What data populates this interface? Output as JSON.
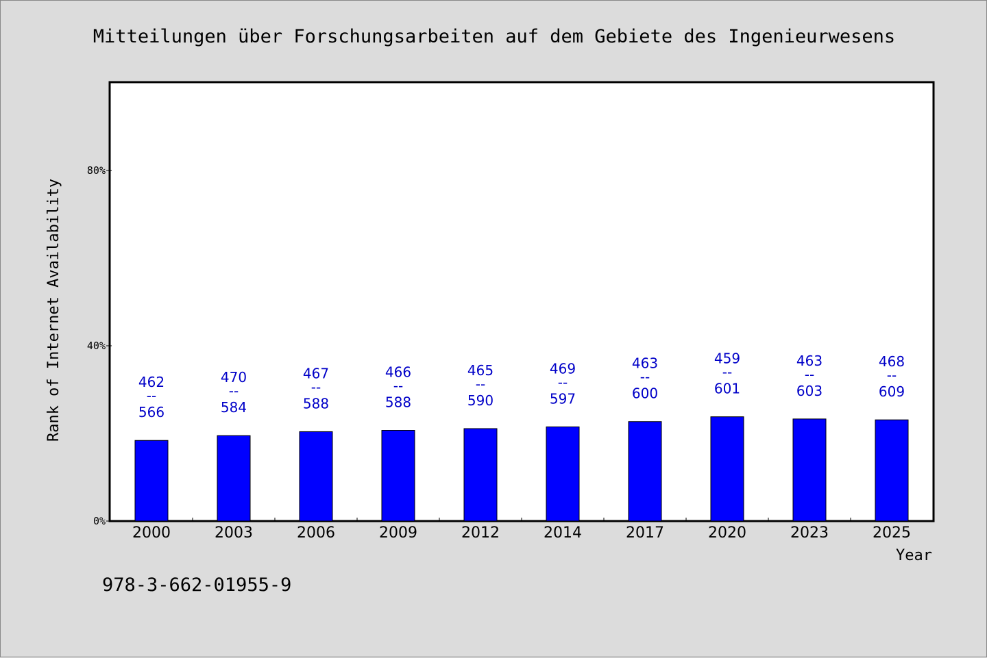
{
  "chart_data": {
    "type": "bar",
    "title": "Mitteilungen über Forschungsarbeiten auf dem Gebiete des Ingenieurwesens",
    "xlabel": "Year",
    "ylabel": "Rank of Internet Availability",
    "categories": [
      "2000",
      "2003",
      "2006",
      "2009",
      "2012",
      "2014",
      "2017",
      "2020",
      "2023",
      "2025"
    ],
    "values": [
      18.4,
      19.5,
      20.4,
      20.7,
      21.1,
      21.5,
      22.7,
      23.8,
      23.3,
      23.1
    ],
    "data_labels": [
      [
        "462",
        "--",
        "566"
      ],
      [
        "470",
        "--",
        "584"
      ],
      [
        "467",
        "--",
        "588"
      ],
      [
        "466",
        "--",
        "588"
      ],
      [
        "465",
        "--",
        "590"
      ],
      [
        "469",
        "--",
        "597"
      ],
      [
        "463",
        "--",
        "600"
      ],
      [
        "459",
        "--",
        "601"
      ],
      [
        "463",
        "--",
        "603"
      ],
      [
        "468",
        "--",
        "609"
      ]
    ],
    "ylim": [
      0,
      100
    ],
    "yticks": [
      0,
      40,
      80
    ],
    "ytick_labels": [
      "0%",
      "40%",
      "80%"
    ],
    "grid": false,
    "bar_color": "#0000ff",
    "label_color": "#0000c8",
    "footnote": "978-3-662-01955-9"
  }
}
